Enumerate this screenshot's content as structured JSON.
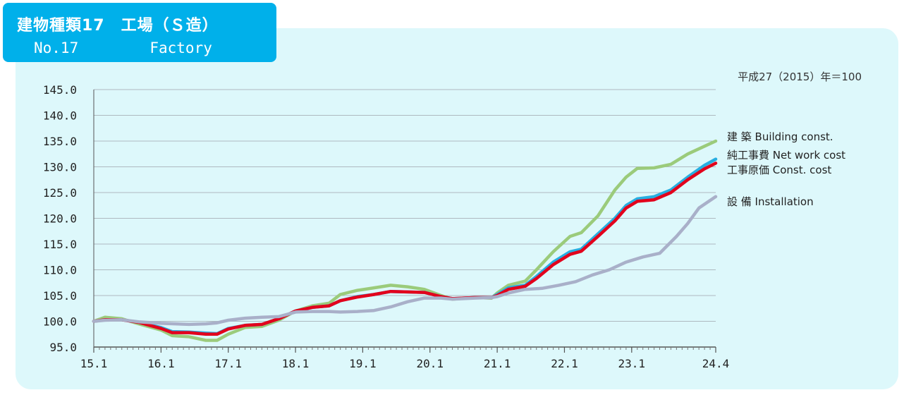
{
  "header": {
    "title_jp": "建物種類17　工場（Ｓ造）",
    "title_en": "No.17        Factory"
  },
  "colors": {
    "building": "#9bcb7b",
    "net_work": "#27aee1",
    "const_cost": "#e2001c",
    "installation": "#a9b0c9",
    "gridline": "#aeb9c0",
    "header_bg": "#00b0ea",
    "panel_bg": "#ddf8fb"
  },
  "chart_data": {
    "type": "line",
    "base_note": "平成27（2015）年＝100",
    "ylim": [
      95,
      145
    ],
    "yticks": [
      "145.0",
      "140.0",
      "135.0",
      "130.0",
      "125.0",
      "120.0",
      "115.0",
      "110.0",
      "105.0",
      "100.0",
      "95.0"
    ],
    "xlim": [
      "2015-01",
      "2024-04"
    ],
    "xticks": [
      {
        "label": "15.1",
        "date": "2015-01"
      },
      {
        "label": "16.1",
        "date": "2016-01"
      },
      {
        "label": "17.1",
        "date": "2017-01"
      },
      {
        "label": "18.1",
        "date": "2018-01"
      },
      {
        "label": "19.1",
        "date": "2019-01"
      },
      {
        "label": "20.1",
        "date": "2020-01"
      },
      {
        "label": "21.1",
        "date": "2021-01"
      },
      {
        "label": "22.1",
        "date": "2022-01"
      },
      {
        "label": "23.1",
        "date": "2023-01"
      },
      {
        "label": "24.4",
        "date": "2024-04"
      }
    ],
    "series": [
      {
        "name": "建 築 Building const.",
        "color": "#9bcb7b",
        "points": [
          [
            "2015-01",
            100.0
          ],
          [
            "2015-03",
            100.8
          ],
          [
            "2015-06",
            100.5
          ],
          [
            "2015-09",
            99.5
          ],
          [
            "2016-01",
            98.3
          ],
          [
            "2016-03",
            97.2
          ],
          [
            "2016-06",
            97.0
          ],
          [
            "2016-09",
            96.3
          ],
          [
            "2016-11",
            96.3
          ],
          [
            "2017-01",
            97.5
          ],
          [
            "2017-04",
            98.8
          ],
          [
            "2017-07",
            99.0
          ],
          [
            "2017-10",
            100.2
          ],
          [
            "2018-01",
            102.0
          ],
          [
            "2018-04",
            103.0
          ],
          [
            "2018-07",
            103.5
          ],
          [
            "2018-09",
            105.2
          ],
          [
            "2018-12",
            106.0
          ],
          [
            "2019-03",
            106.5
          ],
          [
            "2019-06",
            107.0
          ],
          [
            "2019-09",
            106.7
          ],
          [
            "2019-12",
            106.2
          ],
          [
            "2020-03",
            105.0
          ],
          [
            "2020-05",
            104.3
          ],
          [
            "2020-09",
            104.6
          ],
          [
            "2020-12",
            104.5
          ],
          [
            "2021-01",
            105.5
          ],
          [
            "2021-03",
            107.0
          ],
          [
            "2021-06",
            107.8
          ],
          [
            "2021-08",
            110.0
          ],
          [
            "2021-11",
            113.5
          ],
          [
            "2022-02",
            116.5
          ],
          [
            "2022-04",
            117.2
          ],
          [
            "2022-07",
            120.5
          ],
          [
            "2022-10",
            125.5
          ],
          [
            "2022-12",
            128.0
          ],
          [
            "2023-02",
            129.7
          ],
          [
            "2023-05",
            129.8
          ],
          [
            "2023-08",
            130.5
          ],
          [
            "2023-11",
            132.5
          ],
          [
            "2024-02",
            134.0
          ],
          [
            "2024-04",
            135.0
          ]
        ]
      },
      {
        "name": "純工事費 Net work cost",
        "color": "#27aee1",
        "points": [
          [
            "2015-01",
            100.0
          ],
          [
            "2015-03",
            100.3
          ],
          [
            "2015-06",
            100.3
          ],
          [
            "2015-09",
            99.8
          ],
          [
            "2016-01",
            98.8
          ],
          [
            "2016-03",
            98.0
          ],
          [
            "2016-06",
            97.9
          ],
          [
            "2016-09",
            97.7
          ],
          [
            "2016-11",
            97.6
          ],
          [
            "2017-01",
            98.6
          ],
          [
            "2017-04",
            99.2
          ],
          [
            "2017-07",
            99.4
          ],
          [
            "2017-10",
            100.5
          ],
          [
            "2018-01",
            102.0
          ],
          [
            "2018-04",
            102.7
          ],
          [
            "2018-07",
            103.0
          ],
          [
            "2018-09",
            104.0
          ],
          [
            "2018-12",
            104.8
          ],
          [
            "2019-03",
            105.2
          ],
          [
            "2019-06",
            105.8
          ],
          [
            "2019-09",
            105.7
          ],
          [
            "2019-12",
            105.6
          ],
          [
            "2020-03",
            104.8
          ],
          [
            "2020-05",
            104.4
          ],
          [
            "2020-09",
            104.6
          ],
          [
            "2020-12",
            104.6
          ],
          [
            "2021-01",
            105.2
          ],
          [
            "2021-03",
            106.5
          ],
          [
            "2021-06",
            107.0
          ],
          [
            "2021-08",
            108.7
          ],
          [
            "2021-11",
            111.5
          ],
          [
            "2022-02",
            113.5
          ],
          [
            "2022-04",
            114.0
          ],
          [
            "2022-07",
            117.0
          ],
          [
            "2022-10",
            120.0
          ],
          [
            "2022-12",
            122.5
          ],
          [
            "2023-02",
            123.8
          ],
          [
            "2023-05",
            124.2
          ],
          [
            "2023-08",
            125.5
          ],
          [
            "2023-11",
            128.0
          ],
          [
            "2024-02",
            130.3
          ],
          [
            "2024-04",
            131.5
          ]
        ]
      },
      {
        "name": "工事原価 Const. cost",
        "color": "#e2001c",
        "points": [
          [
            "2015-01",
            100.0
          ],
          [
            "2015-03",
            100.3
          ],
          [
            "2015-06",
            100.3
          ],
          [
            "2015-09",
            99.8
          ],
          [
            "2016-01",
            98.6
          ],
          [
            "2016-03",
            97.8
          ],
          [
            "2016-06",
            97.8
          ],
          [
            "2016-09",
            97.5
          ],
          [
            "2016-11",
            97.5
          ],
          [
            "2017-01",
            98.5
          ],
          [
            "2017-04",
            99.2
          ],
          [
            "2017-07",
            99.4
          ],
          [
            "2017-10",
            100.5
          ],
          [
            "2018-01",
            102.0
          ],
          [
            "2018-04",
            102.7
          ],
          [
            "2018-07",
            103.0
          ],
          [
            "2018-09",
            104.0
          ],
          [
            "2018-12",
            104.7
          ],
          [
            "2019-03",
            105.2
          ],
          [
            "2019-06",
            105.8
          ],
          [
            "2019-09",
            105.7
          ],
          [
            "2019-12",
            105.6
          ],
          [
            "2020-03",
            104.8
          ],
          [
            "2020-05",
            104.4
          ],
          [
            "2020-09",
            104.6
          ],
          [
            "2020-12",
            104.6
          ],
          [
            "2021-01",
            105.0
          ],
          [
            "2021-03",
            106.2
          ],
          [
            "2021-06",
            106.8
          ],
          [
            "2021-08",
            108.3
          ],
          [
            "2021-11",
            111.0
          ],
          [
            "2022-02",
            113.0
          ],
          [
            "2022-04",
            113.6
          ],
          [
            "2022-07",
            116.5
          ],
          [
            "2022-10",
            119.5
          ],
          [
            "2022-12",
            122.0
          ],
          [
            "2023-02",
            123.3
          ],
          [
            "2023-05",
            123.6
          ],
          [
            "2023-08",
            125.0
          ],
          [
            "2023-11",
            127.5
          ],
          [
            "2024-02",
            129.6
          ],
          [
            "2024-04",
            130.7
          ]
        ]
      },
      {
        "name": "設 備 Installation",
        "color": "#a9b0c9",
        "points": [
          [
            "2015-01",
            100.0
          ],
          [
            "2015-03",
            100.2
          ],
          [
            "2015-06",
            100.3
          ],
          [
            "2015-09",
            99.9
          ],
          [
            "2016-01",
            99.6
          ],
          [
            "2016-06",
            99.4
          ],
          [
            "2016-09",
            99.5
          ],
          [
            "2016-11",
            99.7
          ],
          [
            "2017-01",
            100.2
          ],
          [
            "2017-04",
            100.6
          ],
          [
            "2017-07",
            100.8
          ],
          [
            "2017-10",
            100.9
          ],
          [
            "2018-01",
            101.8
          ],
          [
            "2018-04",
            101.9
          ],
          [
            "2018-07",
            101.9
          ],
          [
            "2018-09",
            101.8
          ],
          [
            "2018-12",
            101.9
          ],
          [
            "2019-03",
            102.1
          ],
          [
            "2019-06",
            102.8
          ],
          [
            "2019-09",
            103.8
          ],
          [
            "2019-12",
            104.5
          ],
          [
            "2020-03",
            104.5
          ],
          [
            "2020-05",
            104.3
          ],
          [
            "2020-09",
            104.5
          ],
          [
            "2020-12",
            104.6
          ],
          [
            "2021-01",
            104.8
          ],
          [
            "2021-03",
            105.5
          ],
          [
            "2021-06",
            106.2
          ],
          [
            "2021-09",
            106.4
          ],
          [
            "2021-12",
            107.0
          ],
          [
            "2022-03",
            107.7
          ],
          [
            "2022-06",
            109.0
          ],
          [
            "2022-09",
            110.0
          ],
          [
            "2022-12",
            111.5
          ],
          [
            "2023-03",
            112.5
          ],
          [
            "2023-06",
            113.2
          ],
          [
            "2023-09",
            116.5
          ],
          [
            "2023-11",
            119.0
          ],
          [
            "2024-01",
            122.0
          ],
          [
            "2024-04",
            124.2
          ]
        ]
      }
    ],
    "legend_position": "right",
    "grid": true
  }
}
